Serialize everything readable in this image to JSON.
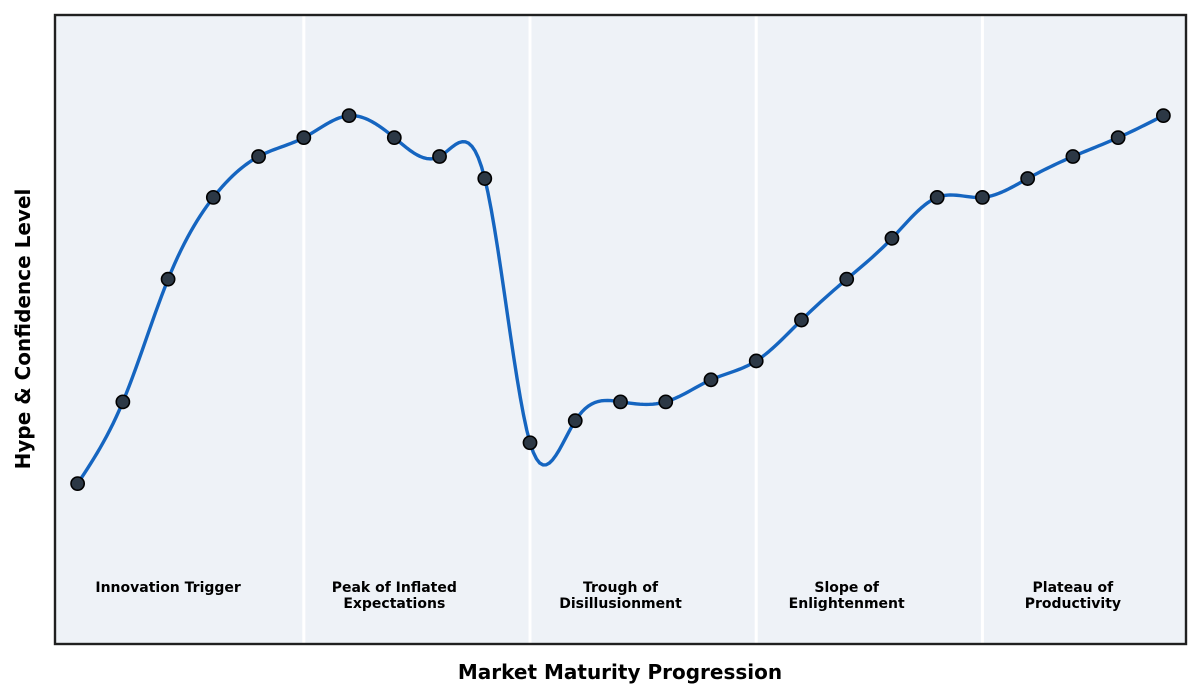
{
  "chart_data": {
    "type": "line",
    "xlabel": "Market Maturity Progression",
    "ylabel": "Hype & Confidence Level",
    "x": [
      1,
      2,
      3,
      4,
      5,
      6,
      7,
      8,
      9,
      10,
      11,
      12,
      13,
      14,
      15,
      16,
      17,
      18,
      19,
      20,
      21,
      22,
      23,
      24,
      25
    ],
    "values": [
      25.5,
      38.5,
      58,
      71,
      77.5,
      80.5,
      84,
      80.5,
      77.5,
      74,
      32,
      35.5,
      38.5,
      38.5,
      42,
      45,
      51.5,
      58,
      64.5,
      71,
      71,
      74,
      77.5,
      80.5,
      84
    ],
    "xlim": [
      0.5,
      25.5
    ],
    "ylim": [
      0,
      100
    ],
    "grid": false,
    "legend": false,
    "ticks_visible": false,
    "smoothing": "natural-cubic-spline",
    "markers": true,
    "line_color": "#1565c0",
    "marker_color": "#2c3845",
    "marker_edge_color": "#000000",
    "plot_bg": "#eef2f7",
    "border_color": "#202020",
    "divider_color": "#ffffff",
    "phase_divider_x": [
      6,
      11,
      16,
      21
    ],
    "phases": [
      {
        "label": "Innovation Trigger",
        "label_x": 3
      },
      {
        "label": "Peak of Inflated\nExpectations",
        "label_x": 8
      },
      {
        "label": "Trough of\nDisillusionment",
        "label_x": 13
      },
      {
        "label": "Slope of\nEnlightenment",
        "label_x": 18
      },
      {
        "label": "Plateau of\nProductivity",
        "label_x": 23
      }
    ]
  }
}
